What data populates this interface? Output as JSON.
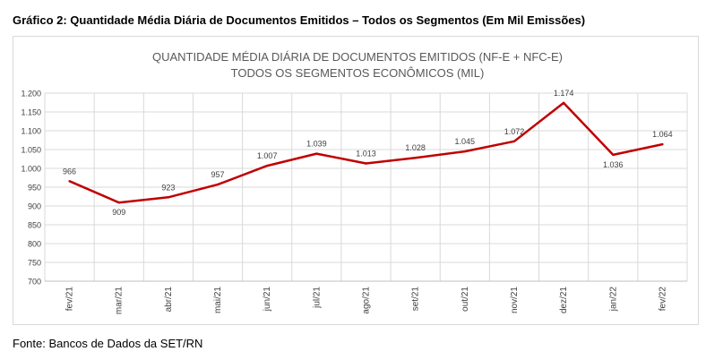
{
  "caption": "Gráfico 2: Quantidade Média Diária de Documentos Emitidos – Todos os Segmentos (Em Mil Emissões)",
  "source": "Fonte: Bancos de Dados da SET/RN",
  "chart_data": {
    "type": "line",
    "title": "QUANTIDADE MÉDIA DIÁRIA DE DOCUMENTOS EMITIDOS (NF-E + NFC-E)",
    "subtitle": "TODOS OS SEGMENTOS ECONÔMICOS (MIL)",
    "xlabel": "",
    "ylabel": "",
    "categories": [
      "fev/21",
      "mar/21",
      "abr/21",
      "mai/21",
      "jun/21",
      "jul/21",
      "ago/21",
      "set/21",
      "out/21",
      "nov/21",
      "dez/21",
      "jan/22",
      "fev/22"
    ],
    "values": [
      966,
      909,
      923,
      957,
      1007,
      1039,
      1013,
      1028,
      1045,
      1072,
      1174,
      1036,
      1064
    ],
    "data_labels": [
      "966",
      "909",
      "923",
      "957",
      "1.007",
      "1.039",
      "1.013",
      "1.028",
      "1.045",
      "1.072",
      "1.174",
      "1.036",
      "1.064"
    ],
    "ylim": [
      700,
      1200
    ],
    "yticks": [
      700,
      750,
      800,
      850,
      900,
      950,
      1000,
      1050,
      1100,
      1150,
      1200
    ],
    "ytick_labels": [
      "700",
      "750",
      "800",
      "850",
      "900",
      "950",
      "1.000",
      "1.050",
      "1.100",
      "1.150",
      "1.200"
    ],
    "grid": true,
    "legend": "none",
    "line_color": "#c00000"
  }
}
